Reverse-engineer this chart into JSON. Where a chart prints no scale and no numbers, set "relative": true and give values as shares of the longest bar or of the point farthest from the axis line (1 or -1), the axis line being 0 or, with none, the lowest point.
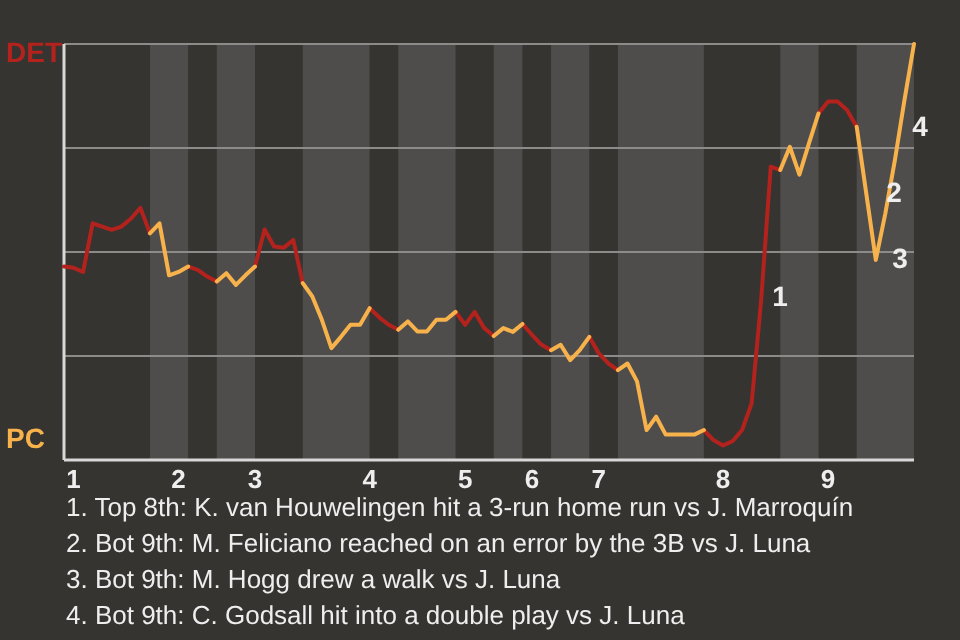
{
  "chart_data": {
    "type": "line",
    "relative": true,
    "grid": "y",
    "marker": "none",
    "line_style": "solid",
    "categories": [
      null,
      "1",
      null,
      null,
      null,
      null,
      null,
      null,
      null,
      null,
      null,
      null,
      "2",
      null,
      null,
      null,
      null,
      null,
      null,
      null,
      "3",
      null,
      null,
      null,
      null,
      null,
      null,
      null,
      null,
      null,
      null,
      null,
      "4",
      null,
      null,
      null,
      null,
      null,
      null,
      null,
      null,
      null,
      "5",
      null,
      null,
      null,
      null,
      null,
      null,
      "6",
      null,
      null,
      null,
      null,
      null,
      null,
      "7",
      null,
      null,
      null,
      null,
      null,
      null,
      null,
      null,
      null,
      null,
      null,
      null,
      "8",
      null,
      null,
      null,
      null,
      null,
      null,
      null,
      null,
      null,
      null,
      "9",
      null,
      null,
      null,
      null,
      null,
      null,
      null,
      null,
      null
    ],
    "series": [
      {
        "color": "#b3221d",
        "values": [
          0.465,
          0.462,
          0.452,
          0.569,
          0.561,
          0.553,
          0.561,
          0.58,
          0.606,
          0.545,
          null,
          null,
          null,
          0.465,
          0.457,
          0.441,
          0.429,
          null,
          null,
          null,
          0.465,
          0.554,
          0.513,
          0.51,
          0.529,
          0.425,
          null,
          null,
          null,
          null,
          null,
          null,
          0.365,
          0.343,
          0.325,
          0.313,
          null,
          null,
          null,
          null,
          null,
          0.356,
          0.325,
          0.356,
          0.317,
          0.298,
          null,
          null,
          0.327,
          0.301,
          0.277,
          0.264,
          null,
          null,
          null,
          0.296,
          0.256,
          0.232,
          0.216,
          null,
          null,
          null,
          null,
          null,
          null,
          null,
          null,
          0.072,
          0.048,
          0.035,
          0.045,
          0.072,
          0.136,
          0.385,
          0.705,
          0.697,
          null,
          null,
          null,
          0.833,
          0.862,
          0.862,
          0.841,
          0.801,
          null,
          null,
          null,
          null,
          null,
          null
        ]
      },
      {
        "color": "#f7b24c",
        "values": [
          null,
          null,
          null,
          null,
          null,
          null,
          null,
          null,
          null,
          0.545,
          0.569,
          0.444,
          0.452,
          0.465,
          null,
          null,
          0.429,
          0.449,
          0.421,
          0.444,
          0.465,
          null,
          null,
          null,
          null,
          0.425,
          0.393,
          0.337,
          0.269,
          0.296,
          0.325,
          0.325,
          0.365,
          null,
          null,
          0.313,
          0.333,
          0.309,
          0.309,
          0.337,
          0.337,
          0.356,
          null,
          null,
          null,
          0.298,
          0.317,
          0.308,
          0.327,
          null,
          null,
          0.264,
          0.277,
          0.24,
          0.264,
          0.296,
          null,
          null,
          0.216,
          0.232,
          0.189,
          0.072,
          0.104,
          0.061,
          0.061,
          0.061,
          0.061,
          0.072,
          null,
          null,
          null,
          null,
          null,
          null,
          null,
          0.697,
          0.753,
          0.686,
          0.761,
          0.833,
          null,
          null,
          null,
          0.801,
          0.641,
          0.481,
          0.593,
          0.721,
          0.865,
          1
        ]
      }
    ],
    "annotations": [
      "DET",
      "PC",
      "1",
      "2",
      "3",
      "4",
      "1. Top 8th: K. van Houwelingen hit a 3-run home run vs J. Marroquín",
      "2. Bot 9th: M. Feliciano reached on an error by the 3B vs J. Luna",
      "3. Bot 9th: M. Hogg drew a walk vs J. Luna",
      "4. Bot 9th: C. Godsall hit into a double play vs J. Luna"
    ]
  }
}
